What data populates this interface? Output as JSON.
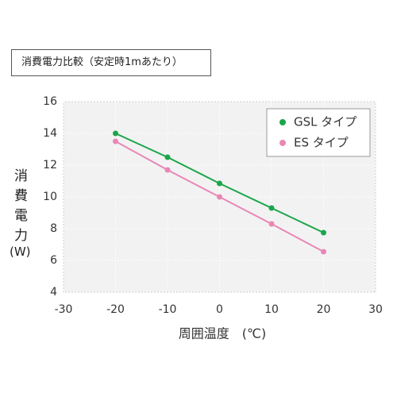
{
  "header": {
    "title": "消費電力比較（安定時1mあたり）"
  },
  "chart_data": {
    "type": "line",
    "x_label": "周囲温度　(℃)",
    "y_label": [
      "消費電力",
      "(W)"
    ],
    "x": [
      -20,
      -10,
      0,
      10,
      20
    ],
    "series": [
      {
        "name": "GSL タイプ",
        "color": "#1aa64a",
        "values": [
          14,
          12.5,
          10.85,
          9.3,
          7.75
        ]
      },
      {
        "name": "ES タイプ",
        "color": "#e887b6",
        "values": [
          13.5,
          11.7,
          10,
          8.3,
          6.55
        ]
      }
    ],
    "xlim": [
      -30,
      30
    ],
    "xticks": [
      -30,
      -20,
      -10,
      0,
      10,
      20,
      30
    ],
    "ylim": [
      4,
      16
    ],
    "yticks": [
      4,
      6,
      8,
      10,
      12,
      14,
      16
    ],
    "grid": true,
    "legend": "top-right"
  }
}
